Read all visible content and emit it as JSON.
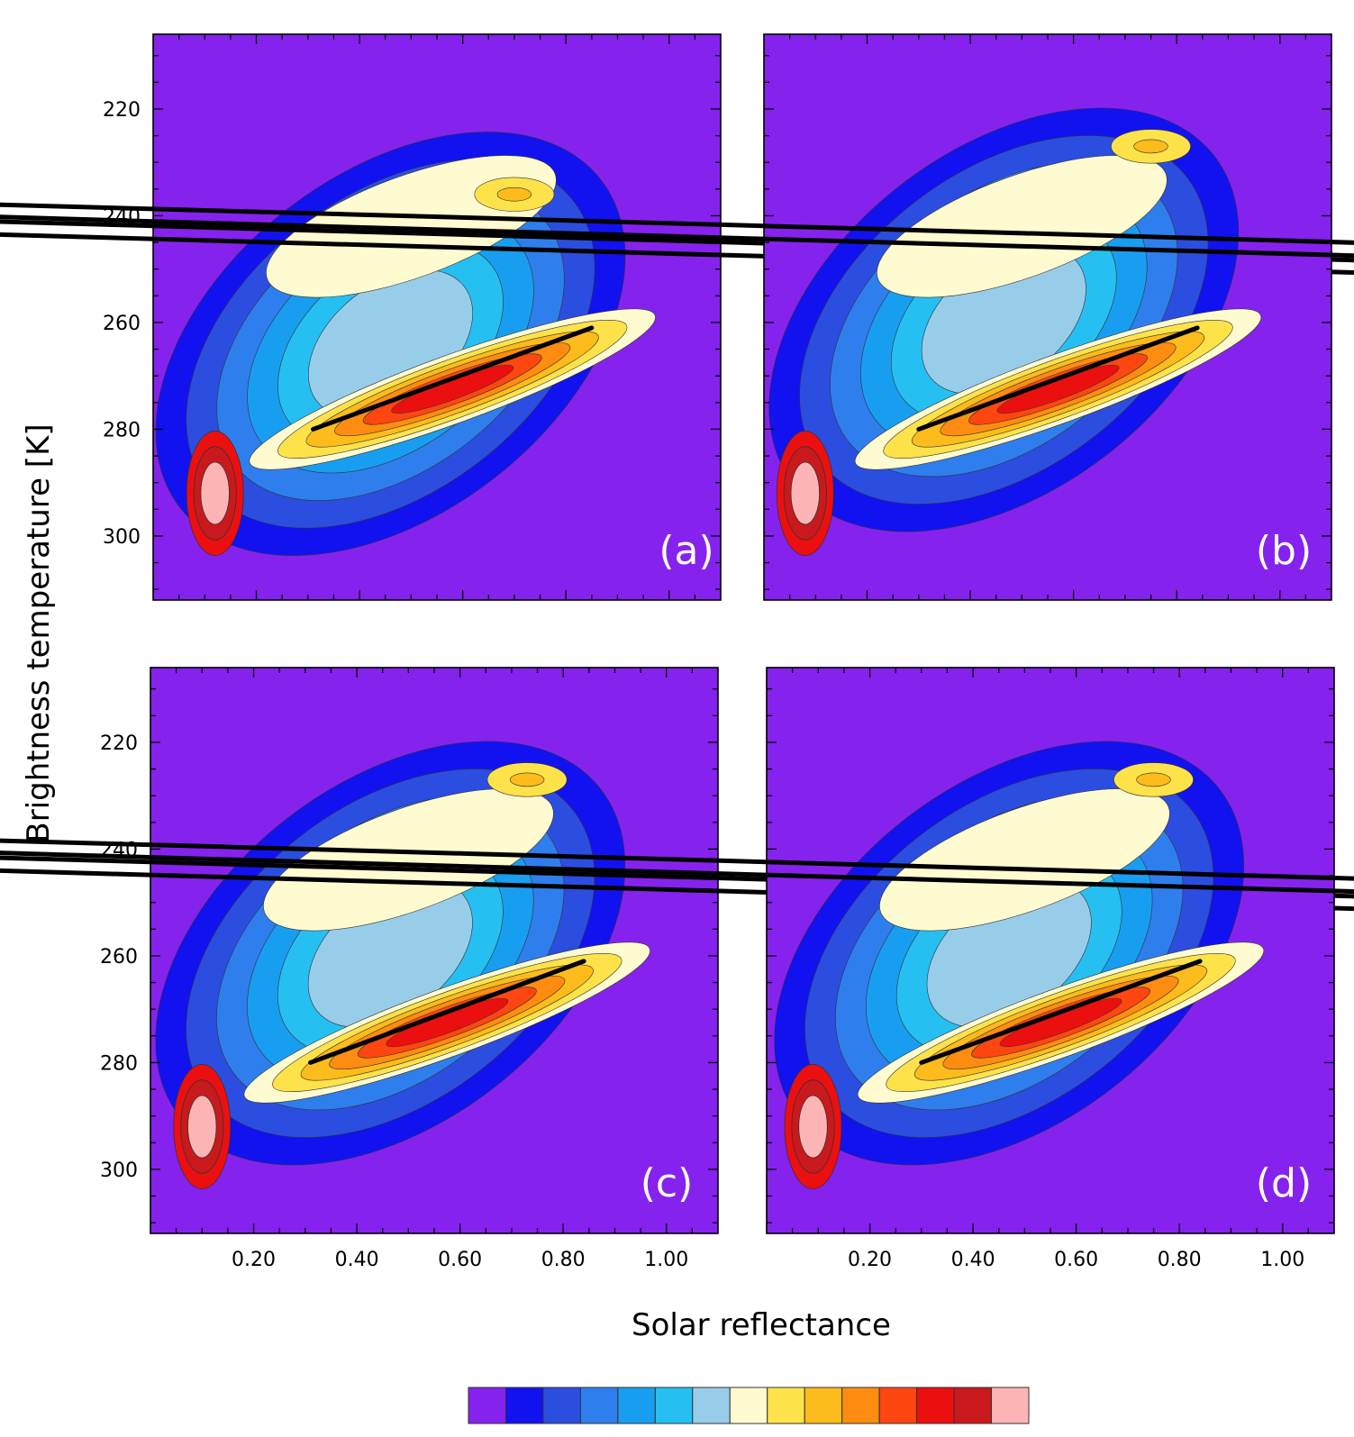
{
  "chart_data": {
    "type": "heatmap",
    "subtype": "filled-contour joint histogram",
    "xlabel": "Solar reflectance",
    "ylabel": "Brightness temperature [K]",
    "xlim": [
      0.0,
      1.1
    ],
    "ylim": [
      312,
      206
    ],
    "x_ticks": [
      0.2,
      0.4,
      0.6,
      0.8,
      1.0
    ],
    "x_tick_labels": [
      "0.20",
      "0.40",
      "0.60",
      "0.80",
      "1.00"
    ],
    "y_ticks": [
      220,
      240,
      260,
      280,
      300
    ],
    "y_tick_labels": [
      "220",
      "240",
      "260",
      "280",
      "300"
    ],
    "colorbar": {
      "orientation": "horizontal",
      "colors": [
        "#8622ee",
        "#1212f0",
        "#2b4ee0",
        "#2f7eee",
        "#189ef0",
        "#25bff2",
        "#98cdea",
        "#fffbd0",
        "#fde24a",
        "#fdbb1c",
        "#fd8c10",
        "#fd4610",
        "#ec0f0f",
        "#c9191c",
        "#fdb4b4"
      ]
    },
    "panels": [
      {
        "label": "(a)",
        "ellipse": {
          "center": [
            0.5,
            244.5
          ],
          "semi_axes": [
            0.42,
            16.5
          ],
          "tilt_deg": -20
        },
        "line": {
          "x": [
            0.31,
            0.85
          ],
          "y": [
            280,
            261
          ]
        },
        "peak_warm": {
          "x": 0.12,
          "y": 292
        },
        "peak_cold": {
          "x": 0.7,
          "y": 236
        }
      },
      {
        "label": "(b)",
        "ellipse": {
          "center": [
            0.5,
            244.5
          ],
          "semi_axes": [
            0.42,
            16.5
          ],
          "tilt_deg": -20
        },
        "line": {
          "x": [
            0.3,
            0.84
          ],
          "y": [
            280,
            261
          ]
        },
        "peak_warm": {
          "x": 0.08,
          "y": 292
        },
        "peak_cold": {
          "x": 0.75,
          "y": 227
        }
      },
      {
        "label": "(c)",
        "ellipse": {
          "center": [
            0.5,
            245
          ],
          "semi_axes": [
            0.42,
            16.5
          ],
          "tilt_deg": -20
        },
        "line": {
          "x": [
            0.31,
            0.84
          ],
          "y": [
            280,
            261
          ]
        },
        "peak_warm": {
          "x": 0.1,
          "y": 292
        },
        "peak_cold": {
          "x": 0.73,
          "y": 227
        }
      },
      {
        "label": "(d)",
        "ellipse": {
          "center": [
            0.5,
            245
          ],
          "semi_axes": [
            0.42,
            16.5
          ],
          "tilt_deg": -20
        },
        "line": {
          "x": [
            0.3,
            0.84
          ],
          "y": [
            280,
            261
          ]
        },
        "peak_warm": {
          "x": 0.09,
          "y": 292
        },
        "peak_cold": {
          "x": 0.75,
          "y": 227
        }
      }
    ]
  }
}
